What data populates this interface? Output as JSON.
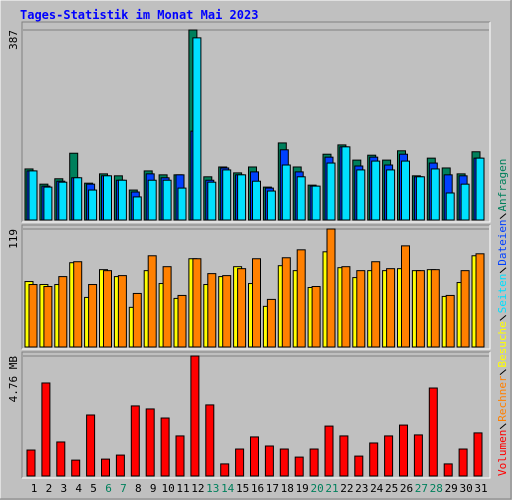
{
  "chart_data": {
    "type": "bar",
    "title": "Tages-Statistik im Monat Mai 2023",
    "categories": [
      "1",
      "2",
      "3",
      "4",
      "5",
      "6",
      "7",
      "8",
      "9",
      "10",
      "11",
      "12",
      "13",
      "14",
      "15",
      "16",
      "17",
      "18",
      "19",
      "20",
      "21",
      "22",
      "23",
      "24",
      "25",
      "26",
      "27",
      "28",
      "29",
      "30",
      "31"
    ],
    "category_colors": [
      "#000000",
      "#000000",
      "#000000",
      "#000000",
      "#000000",
      "#00805c",
      "#00805c",
      "#000000",
      "#000000",
      "#000000",
      "#000000",
      "#000000",
      "#00805c",
      "#00805c",
      "#000000",
      "#000000",
      "#000000",
      "#000000",
      "#000000",
      "#00805c",
      "#00805c",
      "#000000",
      "#000000",
      "#000000",
      "#000000",
      "#000000",
      "#00805c",
      "#00805c",
      "#000000",
      "#000000",
      "#000000"
    ],
    "grid": true,
    "panels": [
      {
        "ylim": [
          0,
          387
        ],
        "yticks": [
          387
        ],
        "series": [
          {
            "name": "Anfragen",
            "color": "#00805c",
            "values": [
              104,
              73,
              84,
              136,
              75,
              94,
              90,
              61,
              100,
              92,
              92,
              387,
              88,
              108,
              96,
              108,
              67,
              157,
              108,
              71,
              134,
              153,
              122,
              132,
              122,
              141,
              90,
              126,
              106,
              94,
              139
            ]
          },
          {
            "name": "Dateien",
            "color": "#0040ff",
            "values": [
              100,
              69,
              79,
              86,
              73,
              90,
              81,
              57,
              94,
              86,
              92,
              181,
              81,
              106,
              92,
              98,
              65,
              143,
              98,
              69,
              128,
              149,
              110,
              128,
              112,
              134,
              88,
              116,
              92,
              90,
              126
            ]
          },
          {
            "name": "Seiten",
            "color": "#00e0ff",
            "values": [
              100,
              67,
              77,
              86,
              61,
              90,
              81,
              47,
              81,
              81,
              65,
              371,
              77,
              102,
              92,
              79,
              59,
              112,
              88,
              69,
              116,
              149,
              102,
              120,
              102,
              120,
              88,
              104,
              55,
              73,
              126
            ]
          }
        ]
      },
      {
        "ylim": [
          0,
          119
        ],
        "yticks": [
          119
        ],
        "series": [
          {
            "name": "Besuche",
            "color": "#ffff00",
            "values": [
              66,
              63,
              63,
              85,
              50,
              78,
              71,
              40,
              77,
              64,
              49,
              89,
              63,
              71,
              81,
              64,
              41,
              82,
              77,
              60,
              96,
              80,
              70,
              77,
              77,
              79,
              77,
              78,
              51,
              65,
              92
            ]
          },
          {
            "name": "Rechner",
            "color": "#ff8000",
            "values": [
              63,
              61,
              71,
              86,
              63,
              77,
              72,
              54,
              92,
              81,
              52,
              89,
              74,
              72,
              79,
              89,
              48,
              90,
              98,
              61,
              119,
              81,
              77,
              86,
              79,
              102,
              77,
              78,
              52,
              77,
              94
            ]
          }
        ]
      },
      {
        "ylim": [
          0,
          4.76
        ],
        "yticks": [
          {
            "value": 4.76,
            "label": "4.76 MB"
          }
        ],
        "series": [
          {
            "name": "Volumen",
            "color": "#ff0000",
            "values": [
              1.03,
              3.69,
              1.35,
              0.63,
              2.42,
              0.67,
              0.83,
              2.78,
              2.66,
              2.3,
              1.59,
              4.76,
              2.82,
              0.48,
              1.07,
              1.55,
              1.19,
              1.07,
              0.75,
              1.07,
              1.98,
              1.59,
              0.79,
              1.31,
              1.59,
              2.02,
              1.63,
              3.49,
              0.48,
              1.07,
              1.71
            ]
          }
        ]
      }
    ]
  }
}
